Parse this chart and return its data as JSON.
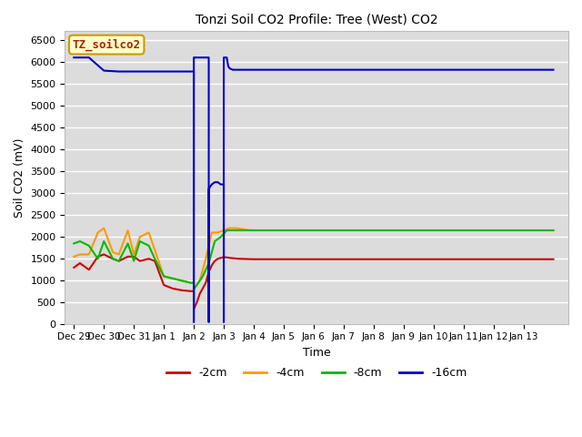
{
  "title": "Tonzi Soil CO2 Profile: Tree (West) CO2",
  "xlabel": "Time",
  "ylabel": "Soil CO2 (mV)",
  "watermark": "TZ_soilco2",
  "ylim": [
    0,
    6700
  ],
  "yticks": [
    0,
    500,
    1000,
    1500,
    2000,
    2500,
    3000,
    3500,
    4000,
    4500,
    5000,
    5500,
    6000,
    6500
  ],
  "bg_color": "#dcdcdc",
  "colors": {
    "2cm": "#cc0000",
    "4cm": "#ff9900",
    "8cm": "#00bb00",
    "16cm": "#0000cc"
  },
  "series": {
    "2cm": {
      "x": [
        -3.0,
        -2.8,
        -2.5,
        -2.2,
        -2.0,
        -1.7,
        -1.5,
        -1.2,
        -1.0,
        -0.8,
        -0.5,
        -0.3,
        0.0,
        0.3,
        0.6,
        0.9,
        0.999,
        1.001,
        1.1,
        1.2,
        1.4,
        1.5,
        1.6,
        1.7,
        1.8,
        1.9,
        2.0,
        2.2,
        2.5,
        3.0,
        4.0,
        5.0,
        6.0,
        7.0,
        8.0,
        9.0,
        10.0,
        11.0,
        12.0,
        13.0
      ],
      "y": [
        1300,
        1400,
        1250,
        1550,
        1600,
        1500,
        1450,
        1550,
        1550,
        1450,
        1500,
        1450,
        900,
        820,
        780,
        760,
        760,
        350,
        500,
        700,
        950,
        1200,
        1350,
        1450,
        1500,
        1520,
        1540,
        1520,
        1500,
        1490,
        1490,
        1490,
        1490,
        1490,
        1490,
        1490,
        1490,
        1490,
        1490,
        1490
      ]
    },
    "4cm": {
      "x": [
        -3.0,
        -2.8,
        -2.5,
        -2.2,
        -2.0,
        -1.7,
        -1.5,
        -1.2,
        -1.0,
        -0.8,
        -0.5,
        -0.3,
        0.0,
        0.3,
        0.6,
        0.9,
        0.999,
        1.001,
        1.1,
        1.2,
        1.4,
        1.6,
        1.8,
        2.0,
        2.2,
        2.4,
        2.6,
        2.8,
        3.0,
        4.0,
        5.0,
        6.0,
        7.0,
        8.0,
        9.0,
        10.0,
        11.0,
        12.0,
        13.0
      ],
      "y": [
        1550,
        1600,
        1600,
        2100,
        2200,
        1650,
        1600,
        2150,
        1600,
        2000,
        2100,
        1700,
        1100,
        1050,
        1000,
        950,
        950,
        850,
        900,
        1000,
        1500,
        2100,
        2100,
        2150,
        2200,
        2200,
        2180,
        2160,
        2150,
        2150,
        2150,
        2150,
        2150,
        2150,
        2150,
        2150,
        2150,
        2150,
        2150
      ]
    },
    "8cm": {
      "x": [
        -3.0,
        -2.8,
        -2.5,
        -2.2,
        -2.0,
        -1.7,
        -1.5,
        -1.2,
        -1.0,
        -0.8,
        -0.5,
        -0.3,
        0.0,
        0.3,
        0.6,
        0.9,
        0.999,
        1.001,
        1.1,
        1.3,
        1.5,
        1.7,
        1.9,
        2.1,
        2.3,
        2.5,
        2.7,
        2.9,
        3.0,
        4.0,
        5.0,
        6.0,
        7.0,
        8.0,
        9.0,
        10.0,
        11.0,
        12.0,
        13.0
      ],
      "y": [
        1850,
        1900,
        1800,
        1500,
        1900,
        1500,
        1450,
        1850,
        1450,
        1900,
        1800,
        1500,
        1100,
        1050,
        1000,
        950,
        950,
        800,
        900,
        1100,
        1400,
        1900,
        2000,
        2150,
        2150,
        2150,
        2150,
        2150,
        2150,
        2150,
        2150,
        2150,
        2150,
        2150,
        2150,
        2150,
        2150,
        2150,
        2150
      ]
    },
    "16cm": {
      "x": [
        -3.0,
        -2.5,
        -2.0,
        -1.5,
        -1.0,
        -0.5,
        0.0,
        0.5,
        0.8,
        0.999,
        1.0,
        1.001,
        1.05,
        1.1,
        1.2,
        1.3,
        1.4,
        1.499,
        1.5,
        1.501,
        1.6,
        1.7,
        1.8,
        1.9,
        1.999,
        2.0,
        2.001,
        2.1,
        2.15,
        2.2,
        2.3,
        2.4,
        2.5,
        2.999,
        3.0,
        3.001,
        3.1,
        3.5,
        4.0,
        5.0,
        6.0,
        7.0,
        8.0,
        9.0,
        10.0,
        11.0,
        12.0,
        13.0
      ],
      "y": [
        6100,
        6100,
        5800,
        5780,
        5780,
        5780,
        5780,
        5780,
        5780,
        5780,
        50,
        6100,
        6100,
        6100,
        6100,
        6100,
        6100,
        6100,
        50,
        3100,
        3200,
        3250,
        3250,
        3200,
        3200,
        50,
        6100,
        6100,
        5900,
        5850,
        5820,
        5820,
        5820,
        5820,
        5820,
        5820,
        5820,
        5820,
        5820,
        5820,
        5820,
        5820,
        5820,
        5820,
        5820,
        5820,
        5820,
        5820
      ]
    }
  },
  "xtick_positions": [
    -3,
    -2,
    -1,
    0,
    1,
    2,
    3,
    4,
    5,
    6,
    7,
    8,
    9,
    10,
    11,
    12,
    13
  ],
  "xtick_labels": [
    "Dec 29",
    "Dec 30",
    "Dec 31",
    "Jan 1",
    "Jan 2",
    "Jan 3",
    "Jan 4",
    "Jan 5",
    "Jan 6",
    "Jan 7",
    "Jan 8",
    "Jan 9",
    "Jan 10",
    "Jan 11",
    "Jan 12",
    "Jan 13",
    ""
  ]
}
